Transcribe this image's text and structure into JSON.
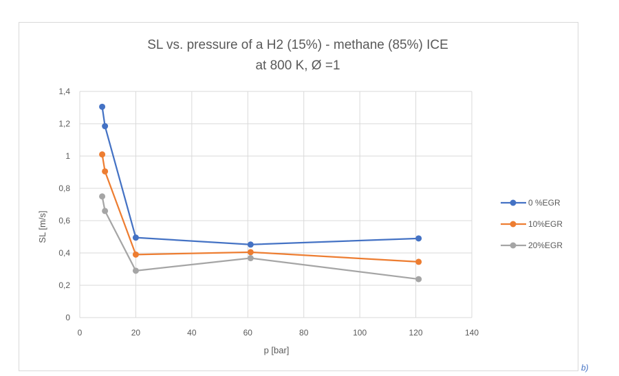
{
  "chart_data": {
    "type": "line",
    "title_line1": "SL vs. pressure of a H2 (15%) - methane (85%) ICE",
    "title_line2": "at 800 K, Ø =1",
    "xlabel": "p [bar]",
    "ylabel": "SL [m/s]",
    "xlim": [
      0,
      140
    ],
    "ylim": [
      0,
      1.4
    ],
    "x_ticks": [
      "0",
      "20",
      "40",
      "60",
      "80",
      "100",
      "120",
      "140"
    ],
    "y_ticks": [
      "0",
      "0,2",
      "0,4",
      "0,6",
      "0,8",
      "1",
      "1,2",
      "1,4"
    ],
    "grid": true,
    "legend_position": "right",
    "series": [
      {
        "name": "0 %EGR",
        "color": "#4472c4",
        "points": [
          [
            8,
            1.305
          ],
          [
            9,
            1.185
          ],
          [
            20,
            0.495
          ],
          [
            61,
            0.452
          ],
          [
            121,
            0.49
          ]
        ]
      },
      {
        "name": "10%EGR",
        "color": "#ed7d31",
        "points": [
          [
            8,
            1.01
          ],
          [
            9,
            0.905
          ],
          [
            20,
            0.39
          ],
          [
            61,
            0.405
          ],
          [
            121,
            0.345
          ]
        ]
      },
      {
        "name": "20%EGR",
        "color": "#a5a5a5",
        "points": [
          [
            8,
            0.75
          ],
          [
            9,
            0.66
          ],
          [
            20,
            0.29
          ],
          [
            61,
            0.368
          ],
          [
            121,
            0.238
          ]
        ]
      }
    ]
  },
  "corner_label": "b)"
}
